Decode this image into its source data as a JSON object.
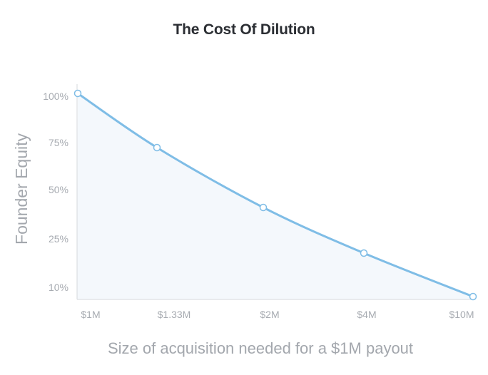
{
  "chart_data": {
    "type": "area",
    "title": "The Cost Of Dilution",
    "xlabel": "Size of acquisition needed for a $1M payout",
    "ylabel": "Founder Equity",
    "categories": [
      "$1M",
      "$1.33M",
      "$2M",
      "$4M",
      "$10M"
    ],
    "y_tick_labels": [
      "100%",
      "75%",
      "50%",
      "25%",
      "10%"
    ],
    "series": [
      {
        "values": [
          100,
          75,
          50,
          25,
          10
        ]
      }
    ],
    "grid": false,
    "legend": "none",
    "colors": {
      "line": "#7fbde6",
      "fill": "#f4f8fc",
      "axis": "#d6d9dd",
      "marker_fill": "#ffffff"
    }
  }
}
